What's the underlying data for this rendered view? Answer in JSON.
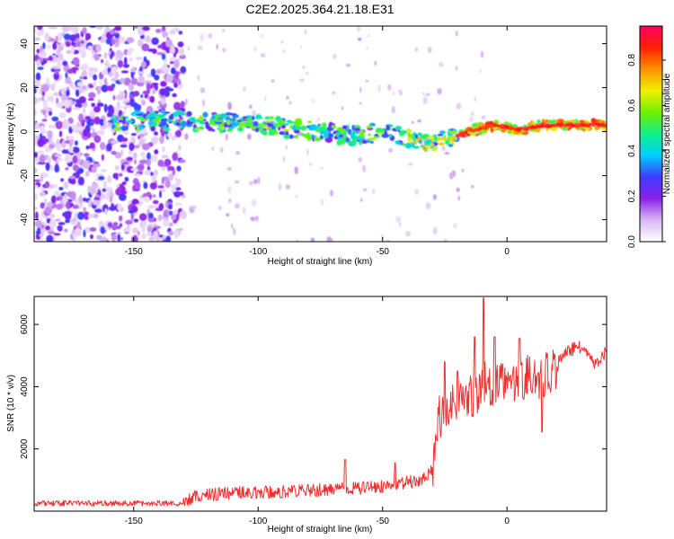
{
  "figure": {
    "title": "C2E2.2025.364.21.18.E31"
  },
  "chart_data": [
    {
      "type": "heatmap",
      "xlabel": "Height of straight line (km)",
      "ylabel": "Frequency (Hz)",
      "xlim": [
        -190,
        40
      ],
      "ylim": [
        -50,
        48
      ],
      "x_ticks": [
        -150,
        -100,
        -50,
        0
      ],
      "y_ticks": [
        -40,
        -20,
        0,
        20,
        40
      ],
      "grid": false,
      "ridge": {
        "x": [
          -150,
          -130,
          -110,
          -90,
          -75,
          -60,
          -50,
          -40,
          -32,
          -25,
          -15,
          -5,
          5,
          15,
          25,
          40
        ],
        "y": [
          5,
          5,
          4,
          2,
          0,
          -2,
          0,
          -3,
          -6,
          -3,
          0,
          3,
          1,
          3,
          3,
          3
        ]
      },
      "colorbar": {
        "label": "Normalized spectral amplitude",
        "range": [
          0.0,
          0.95
        ],
        "ticks": [
          "0.0",
          "0.2",
          "0.4",
          "0.6",
          "0.8"
        ],
        "colors": [
          "#ffffff",
          "#d9b8f2",
          "#8c1fe6",
          "#3f3cff",
          "#00cfff",
          "#10f08a",
          "#6ff000",
          "#f0f000",
          "#ff9000",
          "#ff2000",
          "#ff0066"
        ]
      }
    },
    {
      "type": "line",
      "xlabel": "Height of straight line (km)",
      "ylabel": "SNR (10 * v/v)",
      "xlim": [
        -190,
        40
      ],
      "ylim": [
        0,
        6900
      ],
      "x_ticks": [
        -150,
        -100,
        -50,
        0
      ],
      "y_ticks": [
        2000,
        4000,
        6000
      ],
      "grid": false,
      "series_color": "#f03030",
      "trend": {
        "x": [
          -190,
          -160,
          -130,
          -125,
          -110,
          -90,
          -70,
          -55,
          -45,
          -35,
          -30,
          -28,
          -25,
          -22,
          -18,
          -15,
          -12,
          -10,
          -8,
          -5,
          0,
          5,
          10,
          15,
          20,
          25,
          30,
          35,
          40
        ],
        "y": [
          250,
          250,
          250,
          500,
          580,
          620,
          700,
          750,
          850,
          1000,
          1300,
          2900,
          3300,
          3500,
          3600,
          3750,
          3800,
          4300,
          4000,
          4100,
          4050,
          4350,
          4300,
          4400,
          4700,
          5200,
          5300,
          4650,
          5150
        ]
      },
      "spikes": [
        {
          "x": -25,
          "y": 4800
        },
        {
          "x": -20,
          "y": 4500
        },
        {
          "x": -13,
          "y": 5600
        },
        {
          "x": -9.5,
          "y": 6850
        },
        {
          "x": -5,
          "y": 5600
        },
        {
          "x": 5,
          "y": 5550
        },
        {
          "x": 14,
          "y": 2550
        },
        {
          "x": -65,
          "y": 1650
        },
        {
          "x": -45,
          "y": 1550
        }
      ]
    }
  ]
}
